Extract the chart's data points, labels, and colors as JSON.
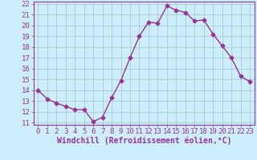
{
  "x": [
    0,
    1,
    2,
    3,
    4,
    5,
    6,
    7,
    8,
    9,
    10,
    11,
    12,
    13,
    14,
    15,
    16,
    17,
    18,
    19,
    20,
    21,
    22,
    23
  ],
  "y": [
    14.0,
    13.2,
    12.8,
    12.5,
    12.2,
    12.2,
    11.1,
    11.5,
    13.3,
    14.9,
    17.0,
    19.0,
    20.3,
    20.2,
    21.8,
    21.4,
    21.2,
    20.4,
    20.5,
    19.2,
    18.1,
    17.0,
    15.3,
    14.8
  ],
  "line_color": "#993399",
  "marker": "D",
  "marker_size": 2.5,
  "bg_color": "#cceeff",
  "grid_color": "#aacccc",
  "xlabel": "Windchill (Refroidissement éolien,°C)",
  "xlabel_color": "#993399",
  "tick_color": "#993399",
  "label_color": "#993399",
  "ylim": [
    11,
    22
  ],
  "xlim": [
    -0.5,
    23.5
  ],
  "yticks": [
    11,
    12,
    13,
    14,
    15,
    16,
    17,
    18,
    19,
    20,
    21,
    22
  ],
  "xticks": [
    0,
    1,
    2,
    3,
    4,
    5,
    6,
    7,
    8,
    9,
    10,
    11,
    12,
    13,
    14,
    15,
    16,
    17,
    18,
    19,
    20,
    21,
    22,
    23
  ],
  "tick_fontsize": 6.5,
  "xlabel_fontsize": 7,
  "linewidth": 1.0
}
